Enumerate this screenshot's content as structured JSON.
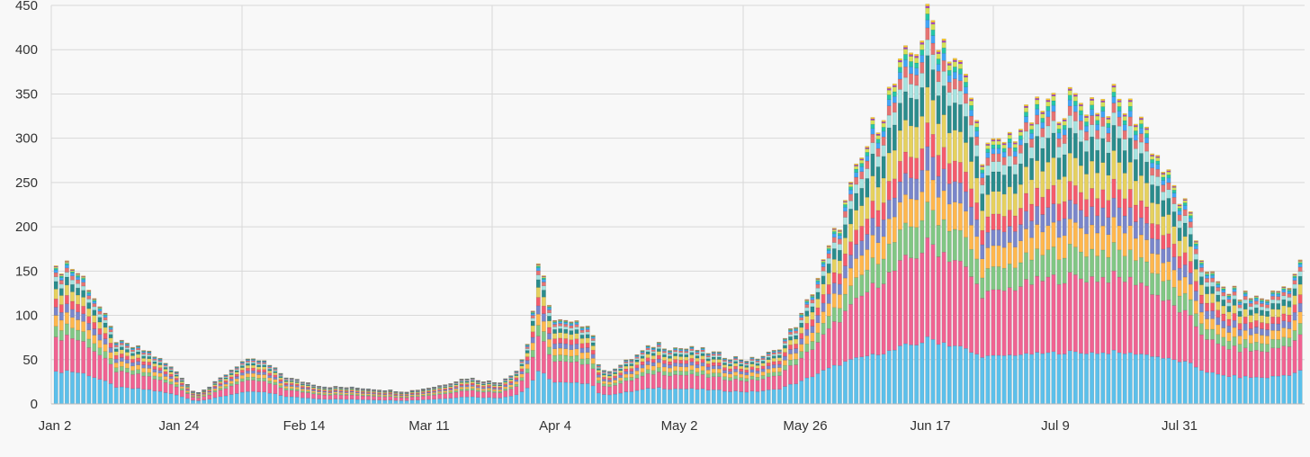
{
  "chart_data": {
    "type": "bar",
    "stacked": true,
    "title": "",
    "xlabel": "",
    "ylabel": "",
    "ylim": [
      0,
      450
    ],
    "yticks": [
      0,
      50,
      100,
      150,
      200,
      250,
      300,
      350,
      400,
      450
    ],
    "xtick_labels": [
      "Jan 2",
      "Jan 24",
      "Feb 14",
      "Mar 11",
      "Apr 4",
      "May 2",
      "May 26",
      "Jun 17",
      "Jul 9",
      "Jul 31"
    ],
    "grid": true,
    "legend": "none",
    "bar_count": 228,
    "totals_keypoints": [
      [
        0,
        150
      ],
      [
        2,
        163
      ],
      [
        6,
        140
      ],
      [
        9,
        105
      ],
      [
        12,
        70
      ],
      [
        18,
        60
      ],
      [
        24,
        35
      ],
      [
        27,
        12
      ],
      [
        30,
        20
      ],
      [
        36,
        48
      ],
      [
        40,
        50
      ],
      [
        45,
        30
      ],
      [
        52,
        20
      ],
      [
        60,
        18
      ],
      [
        68,
        14
      ],
      [
        74,
        20
      ],
      [
        80,
        30
      ],
      [
        86,
        24
      ],
      [
        90,
        40
      ],
      [
        92,
        75
      ],
      [
        94,
        160
      ],
      [
        97,
        95
      ],
      [
        101,
        90
      ],
      [
        104,
        95
      ],
      [
        105,
        60
      ],
      [
        106,
        35
      ],
      [
        110,
        45
      ],
      [
        117,
        70
      ],
      [
        119,
        65
      ],
      [
        125,
        62
      ],
      [
        130,
        55
      ],
      [
        135,
        50
      ],
      [
        140,
        60
      ],
      [
        145,
        100
      ],
      [
        150,
        170
      ],
      [
        155,
        250
      ],
      [
        160,
        330
      ],
      [
        165,
        385
      ],
      [
        170,
        440
      ],
      [
        175,
        395
      ],
      [
        178,
        350
      ],
      [
        180,
        290
      ],
      [
        183,
        290
      ],
      [
        188,
        320
      ],
      [
        193,
        340
      ],
      [
        198,
        345
      ],
      [
        206,
        345
      ],
      [
        211,
        330
      ],
      [
        213,
        300
      ],
      [
        216,
        260
      ],
      [
        220,
        220
      ],
      [
        223,
        165
      ],
      [
        226,
        135
      ],
      [
        230,
        125
      ],
      [
        235,
        120
      ],
      [
        238,
        130
      ],
      [
        240,
        140
      ],
      [
        242,
        158
      ]
    ],
    "series_colors": [
      "#5bc0eb",
      "#f06292",
      "#81c784",
      "#ffb74d",
      "#7986cb",
      "#f45b6c",
      "#e6d15e",
      "#2a8c8c",
      "#a6e3e0",
      "#e57373",
      "#42a5f5",
      "#26c6a6",
      "#d4e157",
      "#ab47bc",
      "#ffca28"
    ],
    "series_shares_low": [
      0.28,
      0.25,
      0.07,
      0.08,
      0.06,
      0.06,
      0.06,
      0.04,
      0.03,
      0.03,
      0.02,
      0.01,
      0.005,
      0.005,
      0.005
    ],
    "series_shares_high": [
      0.17,
      0.25,
      0.09,
      0.08,
      0.06,
      0.06,
      0.09,
      0.08,
      0.04,
      0.03,
      0.02,
      0.015,
      0.015,
      0.005,
      0.005
    ],
    "y_axis_width_bars": 0
  }
}
